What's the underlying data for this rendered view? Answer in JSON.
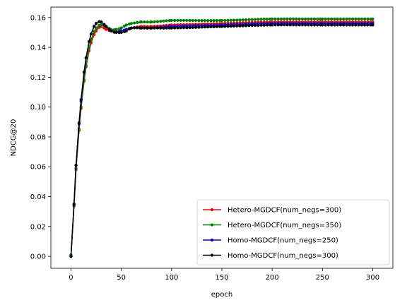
{
  "chart_data": {
    "type": "line",
    "title": "",
    "xlabel": "epoch",
    "ylabel": "NDCG@20",
    "xlim": [
      -20,
      320
    ],
    "ylim": [
      -0.008,
      0.167
    ],
    "xticks": [
      0,
      50,
      100,
      150,
      200,
      250,
      300
    ],
    "xtick_labels": [
      "0",
      "50",
      "100",
      "150",
      "200",
      "250",
      "300"
    ],
    "yticks": [
      0.0,
      0.02,
      0.04,
      0.06,
      0.08,
      0.1,
      0.12,
      0.14,
      0.16
    ],
    "ytick_labels": [
      "0.00",
      "0.02",
      "0.04",
      "0.06",
      "0.08",
      "0.10",
      "0.12",
      "0.14",
      "0.16"
    ],
    "grid": false,
    "legend_position": "bottom-right",
    "series": [
      {
        "name": "Hetero-MGDCF(num_negs=300)",
        "color": "#ff0000",
        "x": [
          0,
          5,
          10,
          15,
          20,
          25,
          30,
          35,
          40,
          45,
          50,
          55,
          60,
          70,
          80,
          100,
          150,
          200,
          250,
          300
        ],
        "y": [
          0.001,
          0.058,
          0.099,
          0.127,
          0.143,
          0.151,
          0.154,
          0.152,
          0.151,
          0.151,
          0.151,
          0.152,
          0.153,
          0.154,
          0.154,
          0.155,
          0.156,
          0.157,
          0.157,
          0.157
        ]
      },
      {
        "name": "Hetero-MGDCF(num_negs=350)",
        "color": "#008000",
        "x": [
          0,
          5,
          10,
          15,
          20,
          25,
          30,
          35,
          40,
          45,
          50,
          55,
          60,
          70,
          80,
          100,
          150,
          200,
          250,
          300
        ],
        "y": [
          0.001,
          0.059,
          0.1,
          0.128,
          0.145,
          0.153,
          0.155,
          0.154,
          0.152,
          0.152,
          0.153,
          0.155,
          0.156,
          0.157,
          0.157,
          0.158,
          0.158,
          0.159,
          0.159,
          0.159
        ]
      },
      {
        "name": "Homo-MGDCF(num_negs=250)",
        "color": "#0000ff",
        "x": [
          0,
          5,
          10,
          15,
          20,
          25,
          30,
          35,
          40,
          45,
          50,
          55,
          60,
          70,
          80,
          100,
          150,
          200,
          250,
          300
        ],
        "y": [
          0.0,
          0.061,
          0.104,
          0.133,
          0.149,
          0.156,
          0.157,
          0.154,
          0.151,
          0.15,
          0.151,
          0.152,
          0.153,
          0.153,
          0.153,
          0.154,
          0.155,
          0.156,
          0.156,
          0.156
        ]
      },
      {
        "name": "Homo-MGDCF(num_negs=300)",
        "color": "#000000",
        "x": [
          0,
          5,
          10,
          15,
          20,
          25,
          30,
          35,
          40,
          45,
          50,
          55,
          60,
          70,
          80,
          100,
          150,
          200,
          250,
          300
        ],
        "y": [
          0.0,
          0.061,
          0.105,
          0.133,
          0.149,
          0.156,
          0.157,
          0.154,
          0.151,
          0.15,
          0.15,
          0.151,
          0.153,
          0.153,
          0.153,
          0.153,
          0.154,
          0.155,
          0.155,
          0.155
        ]
      }
    ]
  }
}
